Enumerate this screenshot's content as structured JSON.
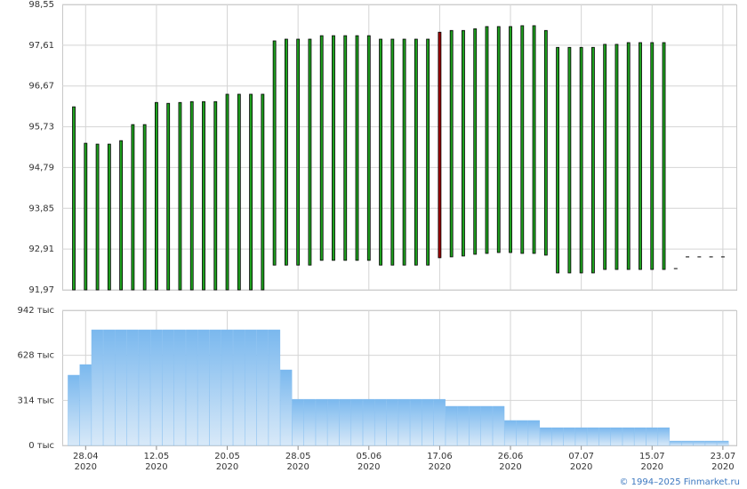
{
  "chart_data": [
    {
      "type": "range_bar",
      "high": [
        96.19,
        95.35,
        95.33,
        95.33,
        95.41,
        95.78,
        95.78,
        96.29,
        96.27,
        96.29,
        96.31,
        96.31,
        96.31,
        96.48,
        96.48,
        96.48,
        96.48,
        97.71,
        97.75,
        97.75,
        97.75,
        97.83,
        97.83,
        97.83,
        97.83,
        97.83,
        97.75,
        97.75,
        97.75,
        97.75,
        97.75,
        97.91,
        97.95,
        97.95,
        97.99,
        98.04,
        98.04,
        98.04,
        98.06,
        98.06,
        97.95,
        97.56,
        97.56,
        97.56,
        97.56,
        97.63,
        97.63,
        97.67,
        97.67,
        97.67,
        97.67,
        92.46,
        92.73,
        92.73,
        92.73,
        92.73
      ],
      "low": [
        91.97,
        91.97,
        91.97,
        91.97,
        91.97,
        91.97,
        91.97,
        91.97,
        91.97,
        91.97,
        91.97,
        91.97,
        91.97,
        91.97,
        91.97,
        91.97,
        91.97,
        92.54,
        92.54,
        92.54,
        92.54,
        92.65,
        92.65,
        92.65,
        92.65,
        92.65,
        92.54,
        92.54,
        92.54,
        92.54,
        92.54,
        92.71,
        92.73,
        92.75,
        92.79,
        92.81,
        92.83,
        92.83,
        92.81,
        92.81,
        92.77,
        92.36,
        92.36,
        92.36,
        92.36,
        92.44,
        92.44,
        92.44,
        92.44,
        92.44,
        92.44,
        92.46,
        92.73,
        92.73,
        92.73,
        92.73
      ],
      "colors": [
        "#1fa01f",
        "#1fa01f",
        "#1fa01f",
        "#1fa01f",
        "#1fa01f",
        "#1fa01f",
        "#1fa01f",
        "#1fa01f",
        "#1fa01f",
        "#1fa01f",
        "#1fa01f",
        "#1fa01f",
        "#1fa01f",
        "#1fa01f",
        "#1fa01f",
        "#1fa01f",
        "#1fa01f",
        "#1fa01f",
        "#1fa01f",
        "#1fa01f",
        "#1fa01f",
        "#1fa01f",
        "#1fa01f",
        "#1fa01f",
        "#1fa01f",
        "#1fa01f",
        "#1fa01f",
        "#1fa01f",
        "#1fa01f",
        "#1fa01f",
        "#1fa01f",
        "#a00000",
        "#1fa01f",
        "#1fa01f",
        "#1fa01f",
        "#1fa01f",
        "#1fa01f",
        "#1fa01f",
        "#1fa01f",
        "#1fa01f",
        "#1fa01f",
        "#1fa01f",
        "#1fa01f",
        "#1fa01f",
        "#1fa01f",
        "#1fa01f",
        "#1fa01f",
        "#1fa01f",
        "#1fa01f",
        "#1fa01f",
        "#1fa01f",
        "#000000",
        "#000000",
        "#000000",
        "#000000",
        "#000000"
      ],
      "ylim": [
        91.97,
        98.55
      ],
      "yticks": [
        {
          "value": 91.97,
          "label": "91,97"
        },
        {
          "value": 92.91,
          "label": "92,91"
        },
        {
          "value": 93.85,
          "label": "93,85"
        },
        {
          "value": 94.79,
          "label": "94,79"
        },
        {
          "value": 95.73,
          "label": "95,73"
        },
        {
          "value": 96.67,
          "label": "96,67"
        },
        {
          "value": 97.61,
          "label": "97,61"
        },
        {
          "value": 98.55,
          "label": "98,55"
        }
      ],
      "grid": true
    },
    {
      "type": "bar",
      "categories": [
        null,
        [
          "28.04",
          "2020"
        ],
        null,
        null,
        null,
        null,
        null,
        [
          "12.05",
          "2020"
        ],
        null,
        null,
        null,
        null,
        null,
        [
          "20.05",
          "2020"
        ],
        null,
        null,
        null,
        null,
        null,
        [
          "28.05",
          "2020"
        ],
        null,
        null,
        null,
        null,
        null,
        [
          "05.06",
          "2020"
        ],
        null,
        null,
        null,
        null,
        null,
        [
          "17.06",
          "2020"
        ],
        null,
        null,
        null,
        null,
        null,
        [
          "26.06",
          "2020"
        ],
        null,
        null,
        null,
        null,
        null,
        [
          "07.07",
          "2020"
        ],
        null,
        null,
        null,
        null,
        null,
        [
          "15.07",
          "2020"
        ],
        null,
        null,
        null,
        null,
        null,
        [
          "23.07",
          "2020"
        ]
      ],
      "values": [
        490,
        564,
        806,
        806,
        806,
        806,
        806,
        806,
        806,
        806,
        806,
        806,
        806,
        806,
        806,
        806,
        806,
        806,
        527,
        322,
        322,
        322,
        322,
        322,
        322,
        322,
        322,
        322,
        322,
        322,
        322,
        322,
        273,
        273,
        273,
        273,
        273,
        174,
        174,
        174,
        124,
        124,
        124,
        124,
        124,
        124,
        124,
        124,
        124,
        124,
        124,
        31,
        31,
        31,
        31,
        31
      ],
      "color": "#7ab8ee",
      "ylim": [
        0,
        942
      ],
      "yticks": [
        {
          "value": 0,
          "label": "0 тыс"
        },
        {
          "value": 314,
          "label": "314 тыс"
        },
        {
          "value": 628,
          "label": "628 тыс"
        },
        {
          "value": 942,
          "label": "942 тыс"
        }
      ],
      "grid": true
    }
  ],
  "footer": "© 1994–2025 Finmarket.ru"
}
